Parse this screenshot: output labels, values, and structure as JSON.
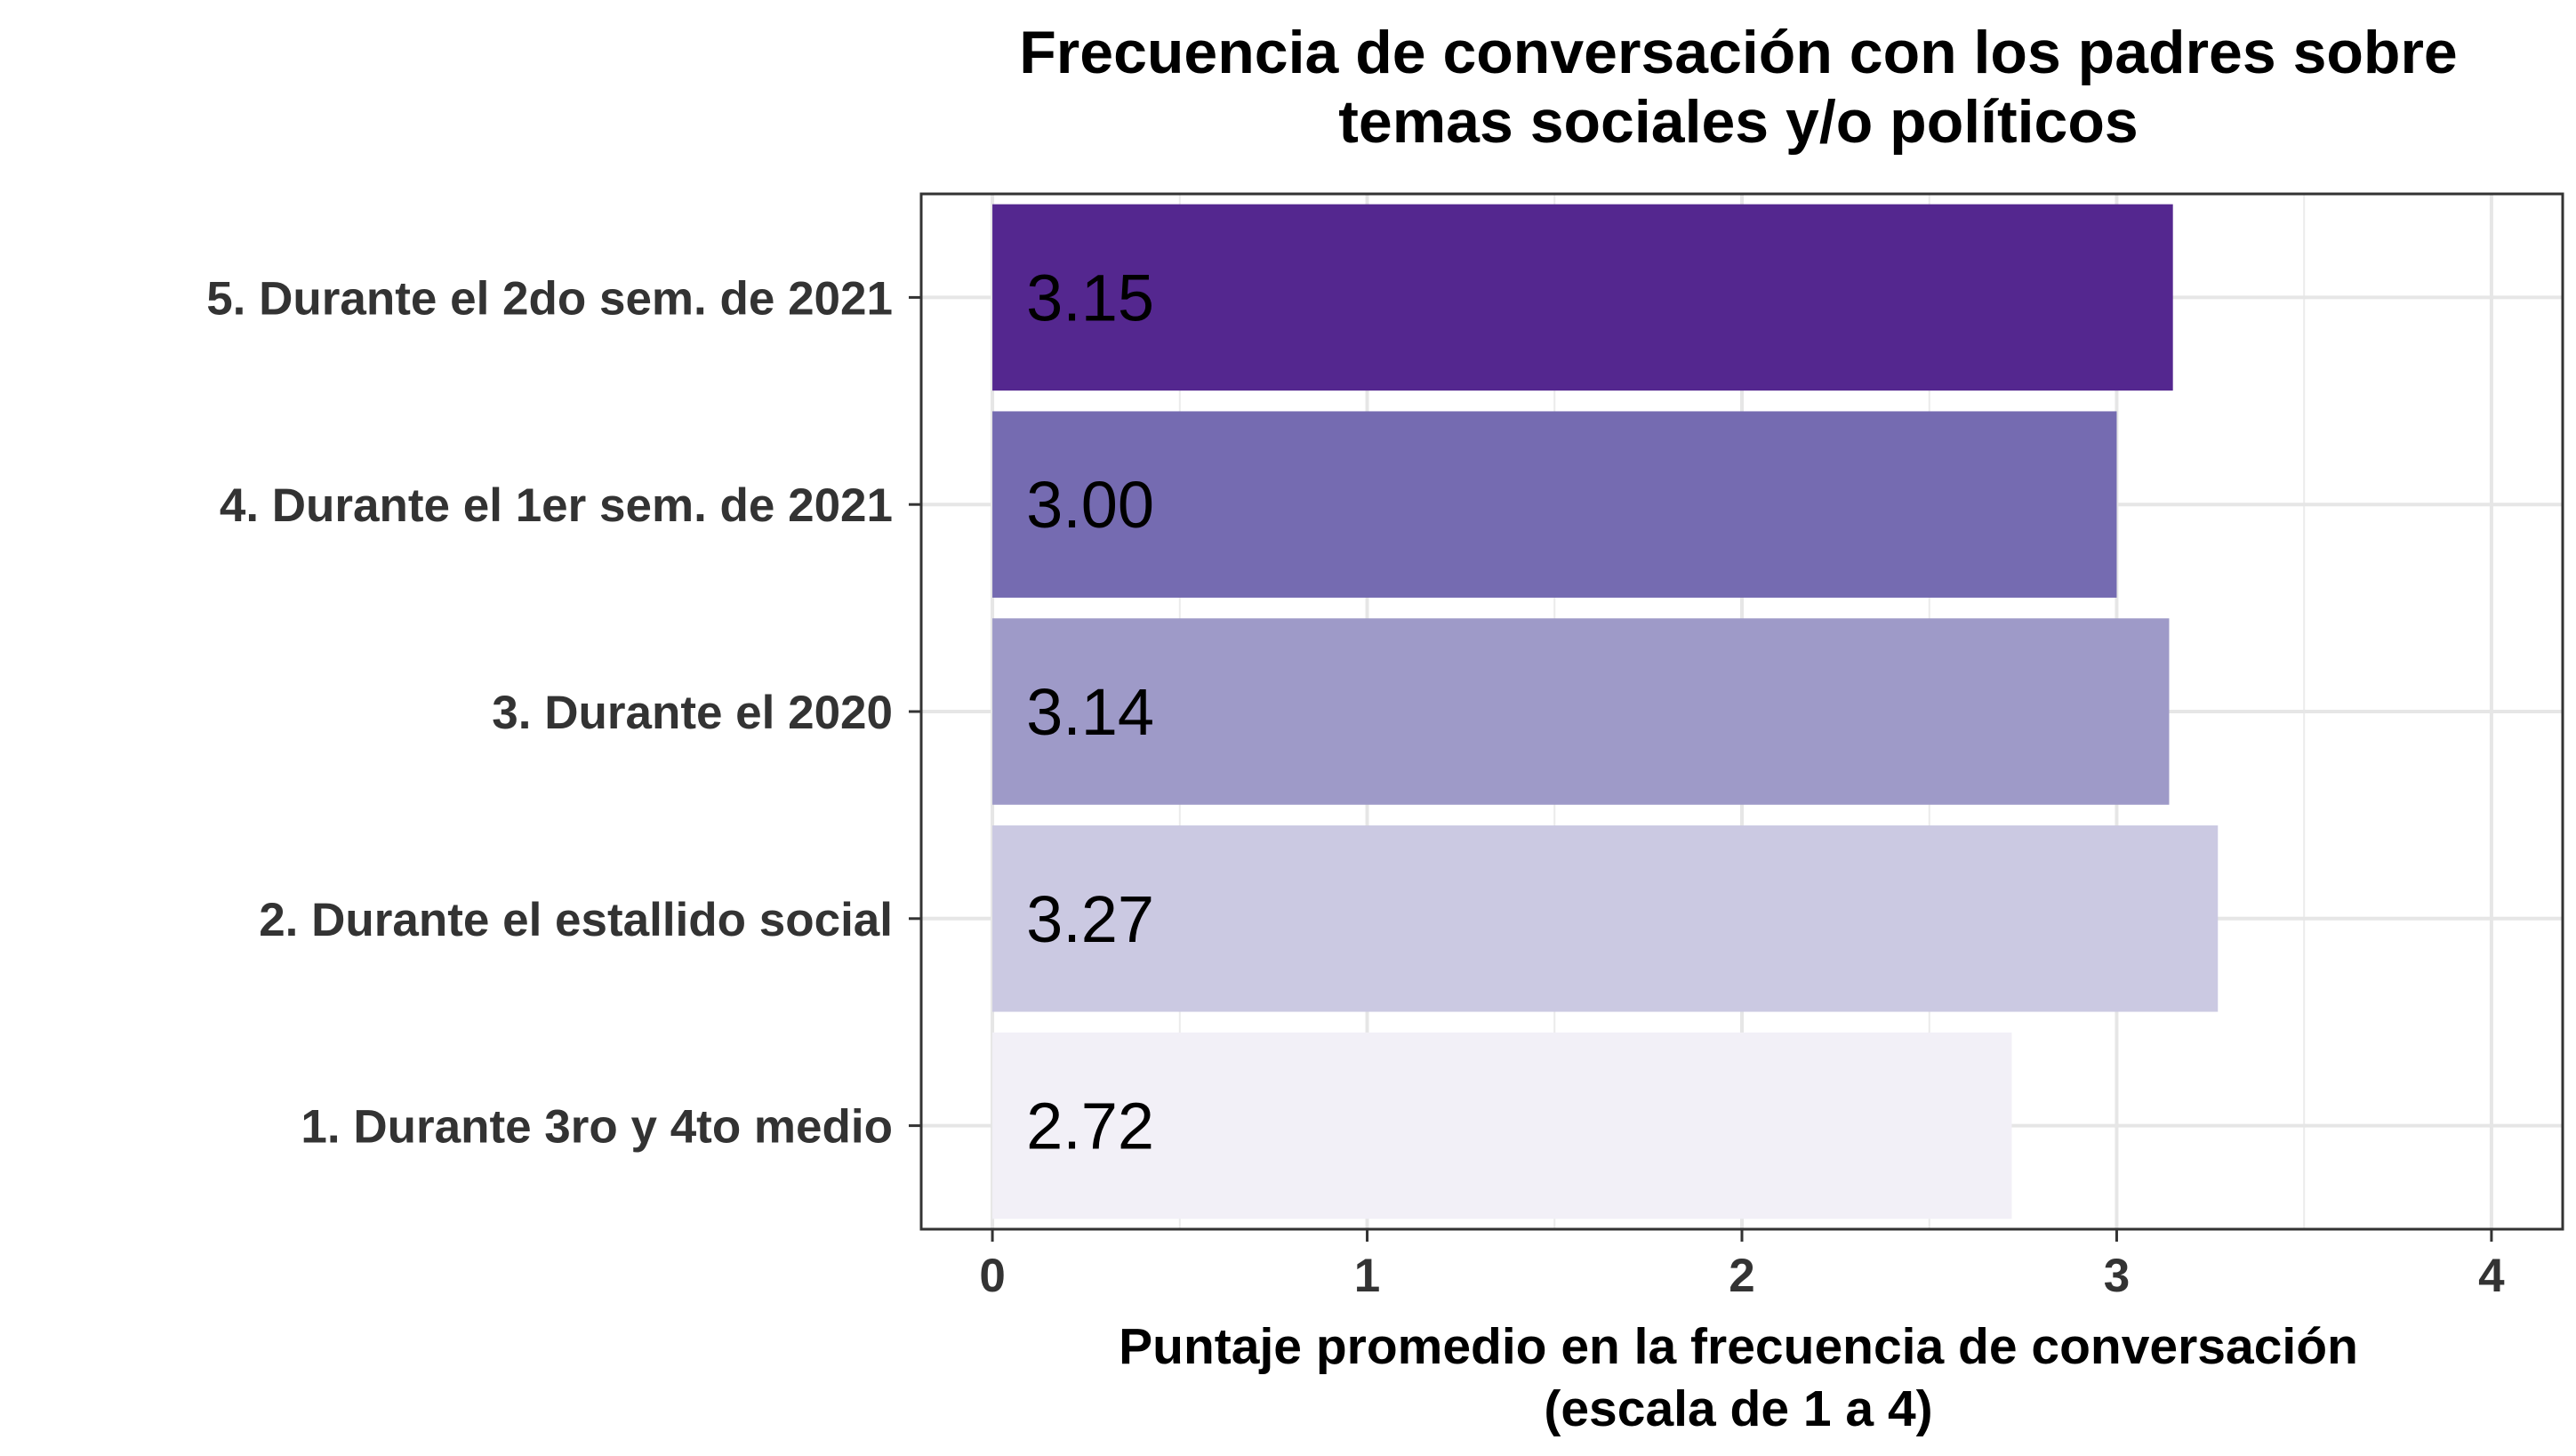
{
  "chart_data": {
    "type": "bar",
    "orientation": "horizontal",
    "title": [
      "Frecuencia de conversación con los padres sobre",
      "temas sociales y/o políticos"
    ],
    "xlabel": [
      "Puntaje promedio en la frecuencia de conversación",
      "(escala de 1 a 4)"
    ],
    "ylabel": "",
    "categories": [
      "5. Durante el 2do sem. de 2021",
      "4. Durante el 1er sem. de 2021",
      "3. Durante el 2020",
      "2. Durante el estallido social",
      "1. Durante 3ro y 4to medio"
    ],
    "values": [
      3.15,
      3.0,
      3.14,
      3.27,
      2.72
    ],
    "value_labels": [
      "3.15",
      "3.00",
      "3.14",
      "3.27",
      "2.72"
    ],
    "colors": [
      "#54278f",
      "#756bb1",
      "#9e9ac8",
      "#cbc9e2",
      "#f2f0f7"
    ],
    "xlim": [
      -0.19,
      4.19
    ],
    "xticks": [
      "0",
      "1",
      "2",
      "3",
      "4"
    ],
    "grid": true,
    "legend": "none"
  }
}
